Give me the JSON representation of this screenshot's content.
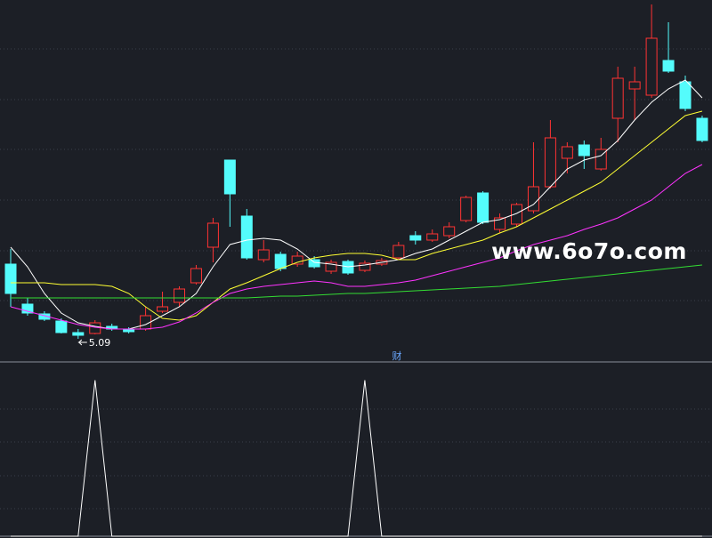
{
  "chart_data": [
    {
      "type": "candlestick",
      "ylim": [
        4.9,
        8.9
      ],
      "up_color": "#ff3333",
      "down_color": "#54fcfc",
      "open": [
        5.93,
        5.48,
        5.37,
        5.29,
        5.16,
        5.15,
        5.23,
        5.2,
        5.2,
        5.4,
        5.5,
        5.72,
        6.12,
        7.1,
        6.47,
        5.98,
        6.04,
        5.93,
        5.98,
        5.85,
        5.96,
        5.86,
        5.93,
        6.0,
        6.25,
        6.2,
        6.25,
        6.42,
        6.73,
        6.32,
        6.38,
        6.53,
        6.8,
        7.12,
        7.27,
        7.0,
        7.57,
        7.9,
        7.83,
        8.22,
        7.98,
        7.57
      ],
      "high": [
        6.1,
        5.55,
        5.4,
        5.32,
        5.2,
        5.3,
        5.26,
        5.22,
        5.45,
        5.62,
        5.68,
        5.92,
        6.45,
        7.1,
        6.55,
        6.2,
        6.07,
        6.07,
        6.02,
        5.98,
        5.98,
        5.97,
        6.0,
        6.18,
        6.3,
        6.32,
        6.4,
        6.7,
        6.75,
        6.5,
        6.62,
        7.3,
        7.55,
        7.3,
        7.32,
        7.35,
        8.15,
        8.15,
        8.85,
        8.65,
        8.05,
        7.6
      ],
      "low": [
        5.45,
        5.35,
        5.29,
        5.15,
        5.09,
        5.14,
        5.18,
        5.15,
        5.18,
        5.38,
        5.45,
        5.7,
        5.95,
        6.35,
        5.98,
        5.95,
        5.85,
        5.9,
        5.88,
        5.82,
        5.81,
        5.84,
        5.91,
        5.98,
        6.15,
        6.18,
        6.22,
        6.4,
        6.38,
        6.28,
        6.35,
        6.5,
        6.78,
        6.95,
        7.0,
        6.98,
        7.3,
        7.55,
        7.8,
        8.08,
        7.65,
        7.3
      ],
      "close": [
        5.6,
        5.38,
        5.31,
        5.16,
        5.13,
        5.27,
        5.2,
        5.17,
        5.35,
        5.45,
        5.65,
        5.88,
        6.39,
        6.72,
        6.0,
        6.09,
        5.88,
        6.02,
        5.9,
        5.95,
        5.83,
        5.94,
        5.97,
        6.14,
        6.2,
        6.27,
        6.35,
        6.68,
        6.4,
        6.45,
        6.6,
        6.8,
        7.35,
        7.25,
        7.15,
        7.22,
        8.02,
        7.98,
        8.47,
        8.1,
        7.68,
        7.32
      ],
      "series": [
        {
          "color": "#ffffff",
          "values": [
            6.12,
            5.9,
            5.6,
            5.38,
            5.27,
            5.23,
            5.2,
            5.2,
            5.25,
            5.35,
            5.45,
            5.6,
            5.9,
            6.15,
            6.2,
            6.22,
            6.2,
            6.1,
            5.95,
            5.93,
            5.9,
            5.92,
            5.95,
            5.98,
            6.05,
            6.1,
            6.2,
            6.3,
            6.4,
            6.43,
            6.5,
            6.6,
            6.8,
            7.0,
            7.1,
            7.15,
            7.32,
            7.55,
            7.75,
            7.9,
            8.0,
            7.8
          ]
        },
        {
          "color": "#ffff33",
          "values": [
            5.72,
            5.72,
            5.72,
            5.7,
            5.7,
            5.7,
            5.68,
            5.6,
            5.45,
            5.32,
            5.3,
            5.35,
            5.5,
            5.65,
            5.72,
            5.8,
            5.88,
            5.95,
            6.0,
            6.03,
            6.05,
            6.05,
            6.03,
            5.98,
            5.98,
            6.05,
            6.1,
            6.15,
            6.2,
            6.28,
            6.35,
            6.45,
            6.55,
            6.65,
            6.75,
            6.85,
            7.0,
            7.15,
            7.3,
            7.45,
            7.6,
            7.65
          ]
        },
        {
          "color": "#ff33ff",
          "values": [
            5.45,
            5.4,
            5.35,
            5.3,
            5.25,
            5.22,
            5.2,
            5.2,
            5.2,
            5.22,
            5.28,
            5.38,
            5.5,
            5.6,
            5.65,
            5.68,
            5.7,
            5.72,
            5.74,
            5.72,
            5.68,
            5.68,
            5.7,
            5.72,
            5.75,
            5.8,
            5.85,
            5.9,
            5.95,
            6.0,
            6.08,
            6.15,
            6.2,
            6.25,
            6.32,
            6.38,
            6.45,
            6.55,
            6.65,
            6.8,
            6.95,
            7.05
          ]
        },
        {
          "color": "#33dd33",
          "values": [
            5.55,
            5.55,
            5.55,
            5.55,
            5.55,
            5.55,
            5.55,
            5.55,
            5.55,
            5.55,
            5.55,
            5.55,
            5.55,
            5.55,
            5.55,
            5.56,
            5.57,
            5.57,
            5.58,
            5.59,
            5.6,
            5.6,
            5.61,
            5.62,
            5.63,
            5.64,
            5.65,
            5.66,
            5.67,
            5.68,
            5.7,
            5.72,
            5.74,
            5.76,
            5.78,
            5.8,
            5.82,
            5.84,
            5.86,
            5.88,
            5.9,
            5.92
          ]
        }
      ],
      "annotation": "财",
      "watermark": "www.6o7o.com"
    },
    {
      "type": "line",
      "ylim": [
        0,
        1.1
      ],
      "series": [
        {
          "color": "#ffffff",
          "values": [
            0,
            0,
            0,
            0,
            0,
            1,
            0,
            0,
            0,
            0,
            0,
            0,
            0,
            0,
            0,
            0,
            0,
            0,
            0,
            0,
            0,
            1,
            0,
            0,
            0,
            0,
            0,
            0,
            0,
            0,
            0,
            0,
            0,
            0,
            0,
            0,
            0,
            0,
            0,
            0,
            0,
            0
          ]
        }
      ]
    }
  ]
}
